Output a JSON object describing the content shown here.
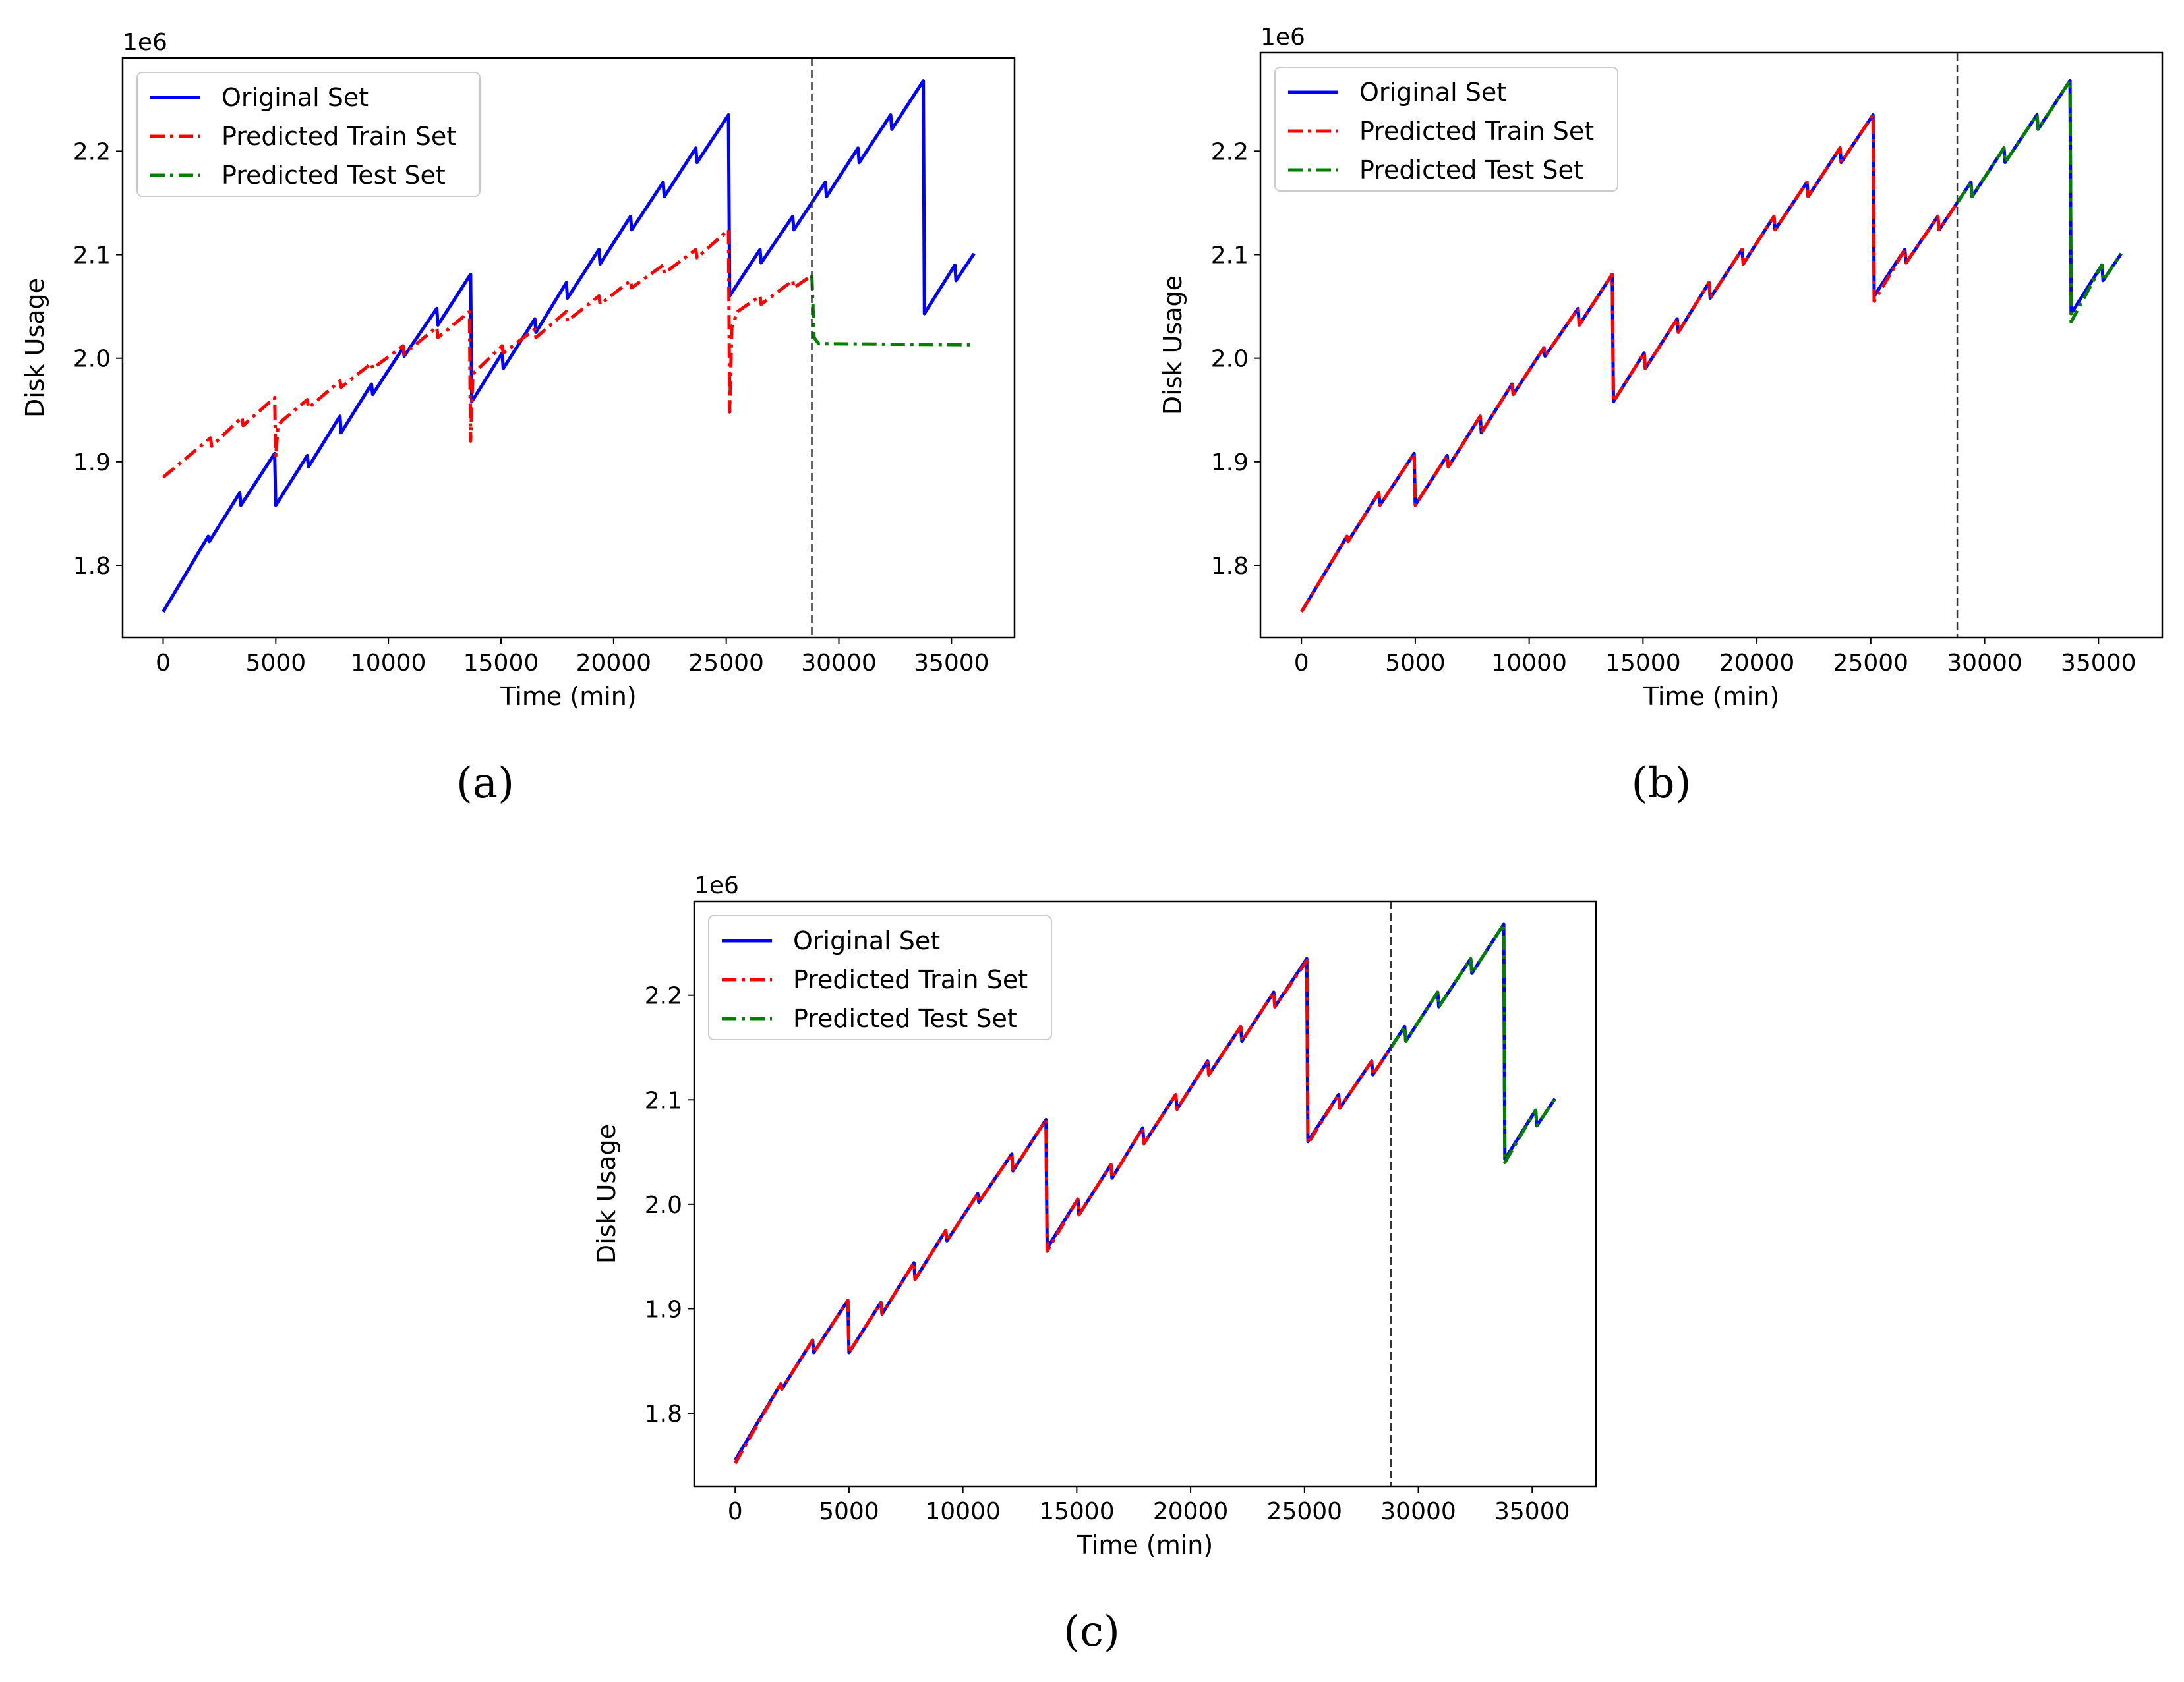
{
  "figure": {
    "captions": [
      "(a)",
      "(b)",
      "(c)"
    ]
  },
  "colors": {
    "original": "#0000ff",
    "train": "#ff0000",
    "test": "#008000",
    "divider": "#333333"
  },
  "chart_data": [
    {
      "id": "a",
      "type": "line",
      "caption": "(a)",
      "xlabel": "Time (min)",
      "ylabel": "Disk Usage",
      "y_offset_label": "1e6",
      "xlim": [
        -1800,
        37800
      ],
      "ylim": [
        1.73,
        2.29
      ],
      "xticks": [
        0,
        5000,
        10000,
        15000,
        20000,
        25000,
        30000,
        35000
      ],
      "yticks": [
        1.8,
        1.9,
        2.0,
        2.1,
        2.2
      ],
      "split_x": 28800,
      "legend": [
        "Original Set",
        "Predicted Train Set",
        "Predicted Test Set"
      ],
      "legend_position": "top-left",
      "series": [
        {
          "name": "Original Set",
          "style": "solid",
          "x": [
            0,
            2000,
            2050,
            3400,
            3450,
            4950,
            5000,
            6400,
            6450,
            7850,
            7900,
            9250,
            9300,
            10650,
            10700,
            12150,
            12200,
            13650,
            13700,
            15050,
            15100,
            16500,
            16550,
            17900,
            17950,
            19350,
            19400,
            20750,
            20800,
            22200,
            22250,
            23650,
            23700,
            25100,
            25150,
            26500,
            26550,
            27950,
            28000,
            29400,
            29450,
            30850,
            30900,
            32300,
            32350,
            33750,
            33800,
            35150,
            35200,
            36000
          ],
          "y": [
            1.755,
            1.828,
            1.823,
            1.87,
            1.858,
            1.908,
            1.858,
            1.906,
            1.895,
            1.944,
            1.928,
            1.975,
            1.965,
            2.01,
            2.002,
            2.048,
            2.032,
            2.081,
            1.958,
            2.005,
            1.99,
            2.038,
            2.025,
            2.073,
            2.058,
            2.105,
            2.091,
            2.137,
            2.124,
            2.17,
            2.156,
            2.203,
            2.189,
            2.235,
            2.06,
            2.105,
            2.092,
            2.137,
            2.124,
            2.17,
            2.156,
            2.203,
            2.189,
            2.235,
            2.221,
            2.268,
            2.043,
            2.09,
            2.075,
            2.101
          ]
        },
        {
          "name": "Predicted Train Set",
          "style": "dashdot",
          "x": [
            0,
            2100,
            2150,
            3500,
            3550,
            4950,
            5000,
            5100,
            5300,
            6400,
            6450,
            7850,
            7900,
            9250,
            9300,
            10650,
            10700,
            12150,
            12200,
            13600,
            13650,
            13750,
            14000,
            15050,
            15100,
            16500,
            16550,
            17900,
            17950,
            19350,
            19400,
            20750,
            20800,
            22200,
            22250,
            23650,
            23700,
            25100,
            25150,
            25250,
            25500,
            26500,
            26550,
            27950,
            28000,
            28800
          ],
          "y": [
            1.885,
            1.923,
            1.915,
            1.943,
            1.935,
            1.962,
            1.905,
            1.935,
            1.94,
            1.96,
            1.952,
            1.978,
            1.972,
            1.995,
            1.99,
            2.012,
            2.004,
            2.03,
            2.02,
            2.045,
            1.92,
            1.985,
            1.99,
            2.012,
            2.005,
            2.028,
            2.02,
            2.045,
            2.036,
            2.06,
            2.052,
            2.075,
            2.068,
            2.09,
            2.082,
            2.105,
            2.097,
            2.124,
            1.948,
            2.03,
            2.045,
            2.06,
            2.052,
            2.075,
            2.068,
            2.08
          ]
        },
        {
          "name": "Predicted Test Set",
          "style": "dashdot",
          "x": [
            28800,
            28900,
            29100,
            36000
          ],
          "y": [
            2.08,
            2.02,
            2.014,
            2.013
          ]
        }
      ]
    },
    {
      "id": "b",
      "type": "line",
      "caption": "(b)",
      "xlabel": "Time (min)",
      "ylabel": "Disk Usage",
      "y_offset_label": "1e6",
      "xlim": [
        -1800,
        37800
      ],
      "ylim": [
        1.73,
        2.295
      ],
      "xticks": [
        0,
        5000,
        10000,
        15000,
        20000,
        25000,
        30000,
        35000
      ],
      "yticks": [
        1.8,
        1.9,
        2.0,
        2.1,
        2.2
      ],
      "split_x": 28800,
      "legend": [
        "Original Set",
        "Predicted Train Set",
        "Predicted Test Set"
      ],
      "legend_position": "top-left",
      "series": [
        {
          "name": "Original Set",
          "style": "solid",
          "x": [
            0,
            2000,
            2050,
            3400,
            3450,
            4950,
            5000,
            6400,
            6450,
            7850,
            7900,
            9250,
            9300,
            10650,
            10700,
            12150,
            12200,
            13650,
            13700,
            15050,
            15100,
            16500,
            16550,
            17900,
            17950,
            19350,
            19400,
            20750,
            20800,
            22200,
            22250,
            23650,
            23700,
            25100,
            25150,
            26500,
            26550,
            27950,
            28000,
            29400,
            29450,
            30850,
            30900,
            32300,
            32350,
            33750,
            33800,
            35150,
            35200,
            36000
          ],
          "y": [
            1.755,
            1.828,
            1.823,
            1.87,
            1.858,
            1.908,
            1.858,
            1.906,
            1.895,
            1.944,
            1.928,
            1.975,
            1.965,
            2.01,
            2.002,
            2.048,
            2.032,
            2.081,
            1.958,
            2.005,
            1.99,
            2.038,
            2.025,
            2.073,
            2.058,
            2.105,
            2.091,
            2.137,
            2.124,
            2.17,
            2.156,
            2.203,
            2.189,
            2.235,
            2.06,
            2.105,
            2.092,
            2.137,
            2.124,
            2.17,
            2.156,
            2.203,
            2.189,
            2.235,
            2.221,
            2.268,
            2.043,
            2.09,
            2.075,
            2.101
          ]
        },
        {
          "name": "Predicted Train Set",
          "style": "dashdot",
          "x": [
            0,
            2000,
            2050,
            3400,
            3450,
            4950,
            5000,
            6400,
            6450,
            7850,
            7900,
            9250,
            9300,
            10650,
            10700,
            12150,
            12200,
            13650,
            13700,
            15050,
            15100,
            16500,
            16550,
            17900,
            17950,
            19350,
            19400,
            20750,
            20800,
            22200,
            22250,
            23650,
            23700,
            25100,
            25150,
            26500,
            26550,
            27950,
            28000,
            28800
          ],
          "y": [
            1.755,
            1.828,
            1.823,
            1.87,
            1.858,
            1.908,
            1.858,
            1.906,
            1.895,
            1.944,
            1.928,
            1.975,
            1.965,
            2.01,
            2.002,
            2.048,
            2.032,
            2.081,
            1.958,
            2.005,
            1.99,
            2.038,
            2.025,
            2.073,
            2.058,
            2.105,
            2.091,
            2.137,
            2.124,
            2.17,
            2.156,
            2.203,
            2.189,
            2.235,
            2.055,
            2.105,
            2.092,
            2.137,
            2.124,
            2.15
          ]
        },
        {
          "name": "Predicted Test Set",
          "style": "dashdot",
          "x": [
            28800,
            29400,
            29450,
            30850,
            30900,
            32300,
            32350,
            33750,
            33800,
            35150,
            35200,
            36000
          ],
          "y": [
            2.15,
            2.17,
            2.156,
            2.203,
            2.189,
            2.235,
            2.221,
            2.268,
            2.035,
            2.09,
            2.075,
            2.101
          ]
        }
      ]
    },
    {
      "id": "c",
      "type": "line",
      "caption": "(c)",
      "xlabel": "Time (min)",
      "ylabel": "Disk Usage",
      "y_offset_label": "1e6",
      "xlim": [
        -1800,
        37800
      ],
      "ylim": [
        1.73,
        2.29
      ],
      "xticks": [
        0,
        5000,
        10000,
        15000,
        20000,
        25000,
        30000,
        35000
      ],
      "yticks": [
        1.8,
        1.9,
        2.0,
        2.1,
        2.2
      ],
      "split_x": 28800,
      "legend": [
        "Original Set",
        "Predicted Train Set",
        "Predicted Test Set"
      ],
      "legend_position": "top-left",
      "series": [
        {
          "name": "Original Set",
          "style": "solid",
          "x": [
            0,
            2000,
            2050,
            3400,
            3450,
            4950,
            5000,
            6400,
            6450,
            7850,
            7900,
            9250,
            9300,
            10650,
            10700,
            12150,
            12200,
            13650,
            13700,
            15050,
            15100,
            16500,
            16550,
            17900,
            17950,
            19350,
            19400,
            20750,
            20800,
            22200,
            22250,
            23650,
            23700,
            25100,
            25150,
            26500,
            26550,
            27950,
            28000,
            29400,
            29450,
            30850,
            30900,
            32300,
            32350,
            33750,
            33800,
            35150,
            35200,
            36000
          ],
          "y": [
            1.755,
            1.828,
            1.823,
            1.87,
            1.858,
            1.908,
            1.858,
            1.906,
            1.895,
            1.944,
            1.928,
            1.975,
            1.965,
            2.01,
            2.002,
            2.048,
            2.032,
            2.081,
            1.958,
            2.005,
            1.99,
            2.038,
            2.025,
            2.073,
            2.058,
            2.105,
            2.091,
            2.137,
            2.124,
            2.17,
            2.156,
            2.203,
            2.189,
            2.235,
            2.06,
            2.105,
            2.092,
            2.137,
            2.124,
            2.17,
            2.156,
            2.203,
            2.189,
            2.235,
            2.221,
            2.268,
            2.043,
            2.09,
            2.075,
            2.101
          ]
        },
        {
          "name": "Predicted Train Set",
          "style": "dashdot",
          "x": [
            0,
            2000,
            2050,
            3400,
            3450,
            4950,
            5000,
            6400,
            6450,
            7850,
            7900,
            9250,
            9300,
            10650,
            10700,
            12150,
            12200,
            13650,
            13700,
            15050,
            15100,
            16500,
            16550,
            17900,
            17950,
            19350,
            19400,
            20750,
            20800,
            22200,
            22250,
            23650,
            23700,
            25100,
            25150,
            26500,
            26550,
            27950,
            28000,
            28800
          ],
          "y": [
            1.752,
            1.828,
            1.823,
            1.87,
            1.858,
            1.908,
            1.858,
            1.906,
            1.895,
            1.944,
            1.928,
            1.975,
            1.965,
            2.01,
            2.002,
            2.048,
            2.032,
            2.081,
            1.955,
            2.005,
            1.99,
            2.038,
            2.025,
            2.073,
            2.058,
            2.105,
            2.091,
            2.137,
            2.124,
            2.17,
            2.156,
            2.203,
            2.189,
            2.233,
            2.058,
            2.105,
            2.092,
            2.137,
            2.124,
            2.15
          ]
        },
        {
          "name": "Predicted Test Set",
          "style": "dashdot",
          "x": [
            28800,
            29400,
            29450,
            30850,
            30900,
            32300,
            32350,
            33750,
            33800,
            35150,
            35200,
            36000
          ],
          "y": [
            2.15,
            2.17,
            2.156,
            2.203,
            2.189,
            2.235,
            2.221,
            2.268,
            2.04,
            2.09,
            2.075,
            2.101
          ]
        }
      ]
    }
  ]
}
